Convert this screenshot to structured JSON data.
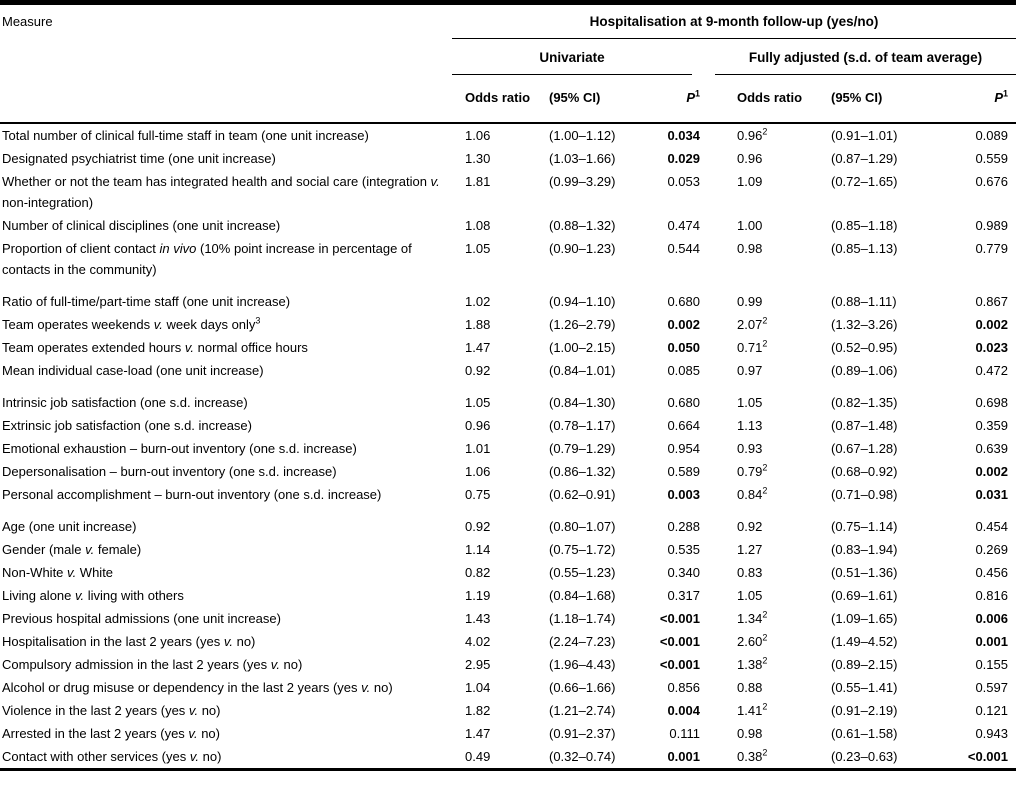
{
  "table": {
    "measure_header": "Measure",
    "span_header": "Hospitalisation at 9-month follow-up (yes/no)",
    "subgroup_headers": {
      "univariate": "Univariate",
      "fully_adjusted": "Fully adjusted (s.d. of team average)"
    },
    "column_headers": {
      "odds_ratio": "Odds ratio",
      "ci": "(95% CI)",
      "p": "P",
      "p_sup": "1"
    },
    "groups": [
      {
        "rows": [
          {
            "measure": "Total number of clinical full-time staff in team (one unit increase)",
            "u_or": "1.06",
            "u_ci": "(1.00–1.12)",
            "u_p": "0.034",
            "a_or": "0.96",
            "a_or_sup": "2",
            "a_ci": "(0.91–1.01)",
            "a_p": "0.089"
          },
          {
            "measure": "Designated psychiatrist time (one unit increase)",
            "u_or": "1.30",
            "u_ci": "(1.03–1.66)",
            "u_p": "0.029",
            "a_or": "0.96",
            "a_ci": "(0.87–1.29)",
            "a_p": "0.559"
          },
          {
            "measure": "Whether or not the team has integrated health and social care (integration v. non-integration)",
            "u_or": "1.81",
            "u_ci": "(0.99–3.29)",
            "u_p": "0.053",
            "a_or": "1.09",
            "a_ci": "(0.72–1.65)",
            "a_p": "0.676"
          },
          {
            "measure": "Number of clinical disciplines (one unit increase)",
            "u_or": "1.08",
            "u_ci": "(0.88–1.32)",
            "u_p": "0.474",
            "a_or": "1.00",
            "a_ci": "(0.85–1.18)",
            "a_p": "0.989"
          },
          {
            "measure": "Proportion of client contact in vivo (10% point increase in percentage of contacts in the community)",
            "u_or": "1.05",
            "u_ci": "(0.90–1.23)",
            "u_p": "0.544",
            "a_or": "0.98",
            "a_ci": "(0.85–1.13)",
            "a_p": "0.779"
          }
        ]
      },
      {
        "rows": [
          {
            "measure": "Ratio of full-time/part-time staff (one unit increase)",
            "u_or": "1.02",
            "u_ci": "(0.94–1.10)",
            "u_p": "0.680",
            "a_or": "0.99",
            "a_ci": "(0.88–1.11)",
            "a_p": "0.867"
          },
          {
            "measure": "Team operates weekends v. week days only",
            "measure_sup": "3",
            "u_or": "1.88",
            "u_ci": "(1.26–2.79)",
            "u_p": "0.002",
            "a_or": "2.07",
            "a_or_sup": "2",
            "a_ci": "(1.32–3.26)",
            "a_p": "0.002"
          },
          {
            "measure": "Team operates extended hours v. normal office hours",
            "u_or": "1.47",
            "u_ci": "(1.00–2.15)",
            "u_p": "0.050",
            "a_or": "0.71",
            "a_or_sup": "2",
            "a_ci": "(0.52–0.95)",
            "a_p": "0.023"
          },
          {
            "measure": "Mean individual case-load (one unit increase)",
            "u_or": "0.92",
            "u_ci": "(0.84–1.01)",
            "u_p": "0.085",
            "a_or": "0.97",
            "a_ci": "(0.89–1.06)",
            "a_p": "0.472"
          }
        ]
      },
      {
        "rows": [
          {
            "measure": "Intrinsic job satisfaction (one s.d. increase)",
            "u_or": "1.05",
            "u_ci": "(0.84–1.30)",
            "u_p": "0.680",
            "a_or": "1.05",
            "a_ci": "(0.82–1.35)",
            "a_p": "0.698"
          },
          {
            "measure": "Extrinsic job satisfaction (one s.d. increase)",
            "u_or": "0.96",
            "u_ci": "(0.78–1.17)",
            "u_p": "0.664",
            "a_or": "1.13",
            "a_ci": "(0.87–1.48)",
            "a_p": "0.359"
          },
          {
            "measure": "Emotional exhaustion – burn-out inventory (one s.d. increase)",
            "u_or": "1.01",
            "u_ci": "(0.79–1.29)",
            "u_p": "0.954",
            "a_or": "0.93",
            "a_ci": "(0.67–1.28)",
            "a_p": "0.639"
          },
          {
            "measure": "Depersonalisation – burn-out inventory (one s.d. increase)",
            "u_or": "1.06",
            "u_ci": "(0.86–1.32)",
            "u_p": "0.589",
            "a_or": "0.79",
            "a_or_sup": "2",
            "a_ci": "(0.68–0.92)",
            "a_p": "0.002"
          },
          {
            "measure": "Personal accomplishment – burn-out inventory (one s.d. increase)",
            "u_or": "0.75",
            "u_ci": "(0.62–0.91)",
            "u_p": "0.003",
            "a_or": "0.84",
            "a_or_sup": "2",
            "a_ci": "(0.71–0.98)",
            "a_p": "0.031"
          }
        ]
      },
      {
        "rows": [
          {
            "measure": "Age (one unit increase)",
            "u_or": "0.92",
            "u_ci": "(0.80–1.07)",
            "u_p": "0.288",
            "a_or": "0.92",
            "a_ci": "(0.75–1.14)",
            "a_p": "0.454"
          },
          {
            "measure": "Gender (male v. female)",
            "u_or": "1.14",
            "u_ci": "(0.75–1.72)",
            "u_p": "0.535",
            "a_or": "1.27",
            "a_ci": "(0.83–1.94)",
            "a_p": "0.269"
          },
          {
            "measure": "Non-White v. White",
            "u_or": "0.82",
            "u_ci": "(0.55–1.23)",
            "u_p": "0.340",
            "a_or": "0.83",
            "a_ci": "(0.51–1.36)",
            "a_p": "0.456"
          },
          {
            "measure": "Living alone v. living with others",
            "u_or": "1.19",
            "u_ci": "(0.84–1.68)",
            "u_p": "0.317",
            "a_or": "1.05",
            "a_ci": "(0.69–1.61)",
            "a_p": "0.816"
          },
          {
            "measure": "Previous hospital admissions (one unit increase)",
            "u_or": "1.43",
            "u_ci": "(1.18–1.74)",
            "u_p": "<0.001",
            "a_or": "1.34",
            "a_or_sup": "2",
            "a_ci": "(1.09–1.65)",
            "a_p": "0.006"
          },
          {
            "measure": "Hospitalisation in the last 2 years (yes v. no)",
            "u_or": "4.02",
            "u_ci": "(2.24–7.23)",
            "u_p": "<0.001",
            "a_or": "2.60",
            "a_or_sup": "2",
            "a_ci": "(1.49–4.52)",
            "a_p": "0.001"
          },
          {
            "measure": "Compulsory admission in the last 2 years (yes v. no)",
            "u_or": "2.95",
            "u_ci": "(1.96–4.43)",
            "u_p": "<0.001",
            "a_or": "1.38",
            "a_or_sup": "2",
            "a_ci": "(0.89–2.15)",
            "a_p": "0.155"
          },
          {
            "measure": "Alcohol or drug misuse or dependency in the last 2 years (yes v. no)",
            "u_or": "1.04",
            "u_ci": "(0.66–1.66)",
            "u_p": "0.856",
            "a_or": "0.88",
            "a_ci": "(0.55–1.41)",
            "a_p": "0.597"
          },
          {
            "measure": "Violence in the last 2 years (yes v. no)",
            "u_or": "1.82",
            "u_ci": "(1.21–2.74)",
            "u_p": "0.004",
            "a_or": "1.41",
            "a_or_sup": "2",
            "a_ci": "(0.91–2.19)",
            "a_p": "0.121"
          },
          {
            "measure": "Arrested in the last 2 years (yes v. no)",
            "u_or": "1.47",
            "u_ci": "(0.91–2.37)",
            "u_p": "0.111",
            "a_or": "0.98",
            "a_ci": "(0.61–1.58)",
            "a_p": "0.943"
          },
          {
            "measure": "Contact with other services (yes v. no)",
            "u_or": "0.49",
            "u_ci": "(0.32–0.74)",
            "u_p": "0.001",
            "a_or": "0.38",
            "a_or_sup": "2",
            "a_ci": "(0.23–0.63)",
            "a_p": "<0.001"
          }
        ]
      }
    ]
  }
}
